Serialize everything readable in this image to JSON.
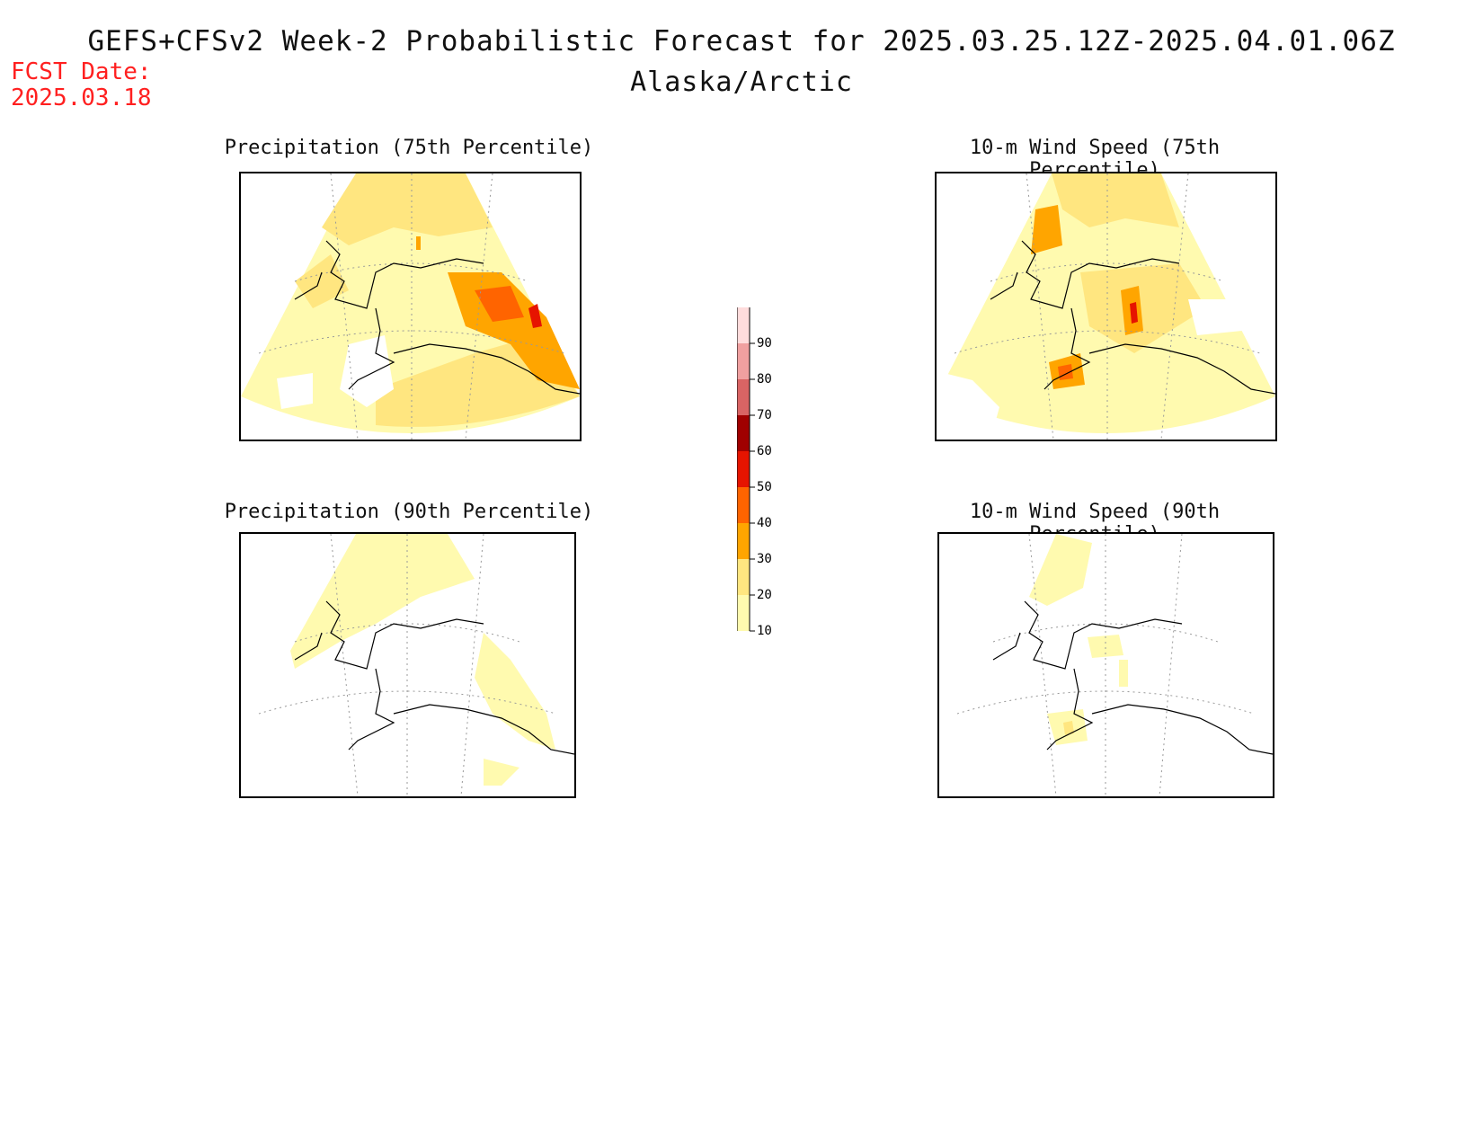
{
  "header": {
    "title": "GEFS+CFSv2 Week-2 Probabilistic Forecast for 2025.03.25.12Z-2025.04.01.06Z",
    "region": "Alaska/Arctic",
    "fcst_label": "FCST Date:",
    "fcst_date": "2025.03.18"
  },
  "panels": [
    {
      "id": "precip75",
      "title": "Precipitation (75th Percentile)",
      "level": "p75"
    },
    {
      "id": "wind75",
      "title": "10-m Wind Speed (75th Percentile)",
      "level": "p75"
    },
    {
      "id": "precip90",
      "title": "Precipitation (90th Percentile)",
      "level": "p90"
    },
    {
      "id": "wind90",
      "title": "10-m Wind Speed (90th Percentile)",
      "level": "p90"
    }
  ],
  "colorbar": {
    "levels": [
      "10",
      "20",
      "30",
      "40",
      "50",
      "60",
      "70",
      "80",
      "90"
    ],
    "colors": [
      "#fffaaf",
      "#ffe680",
      "#ffa500",
      "#ff6400",
      "#e61400",
      "#a00000",
      "#d96464",
      "#f0a0a0",
      "#ffdcdc"
    ]
  },
  "colors": {
    "fcst_date": "#ff2020",
    "coast": "#000000",
    "graticule": "#999999"
  }
}
